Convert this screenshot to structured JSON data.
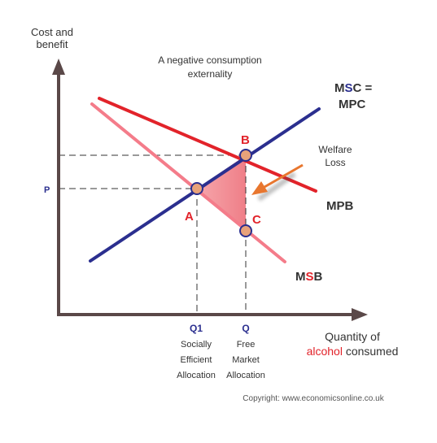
{
  "axes": {
    "y_label_line1": "Cost and",
    "y_label_line2": "benefit",
    "x_label_line1": "Quantity of",
    "x_label_highlight": "alcohol",
    "x_label_rest": " consumed"
  },
  "title": {
    "line1": "A negative consumption",
    "line2": "externality"
  },
  "curves": {
    "msc_prefix": "M",
    "msc_highlight": "S",
    "msc_suffix": "C =",
    "mpc": "MPC",
    "mpb": "MPB",
    "msb_prefix": "M",
    "msb_highlight": "S",
    "msb_suffix": "B"
  },
  "points": {
    "a": "A",
    "b": "B",
    "c": "C"
  },
  "price_label": "P",
  "welfare_loss": {
    "line1": "Welfare",
    "line2": "Loss"
  },
  "q1": {
    "label": "Q1",
    "line1": "Socially",
    "line2": "Efficient",
    "line3": "Allocation"
  },
  "q": {
    "label": "Q",
    "line1": "Free",
    "line2": "Market",
    "line3": "Allocation"
  },
  "copyright": "Copyright: www.economicsonline.co.uk",
  "colors": {
    "axis": "#5a4848",
    "msc_line": "#2b2f8f",
    "mpb_line": "#e2232a",
    "msb_line": "#f47c8a",
    "welfare_fill": "#f49097",
    "point_fill": "#e8a27a",
    "arrow": "#e8762e",
    "red_text": "#e2232a",
    "blue_text": "#2b2f8f"
  }
}
